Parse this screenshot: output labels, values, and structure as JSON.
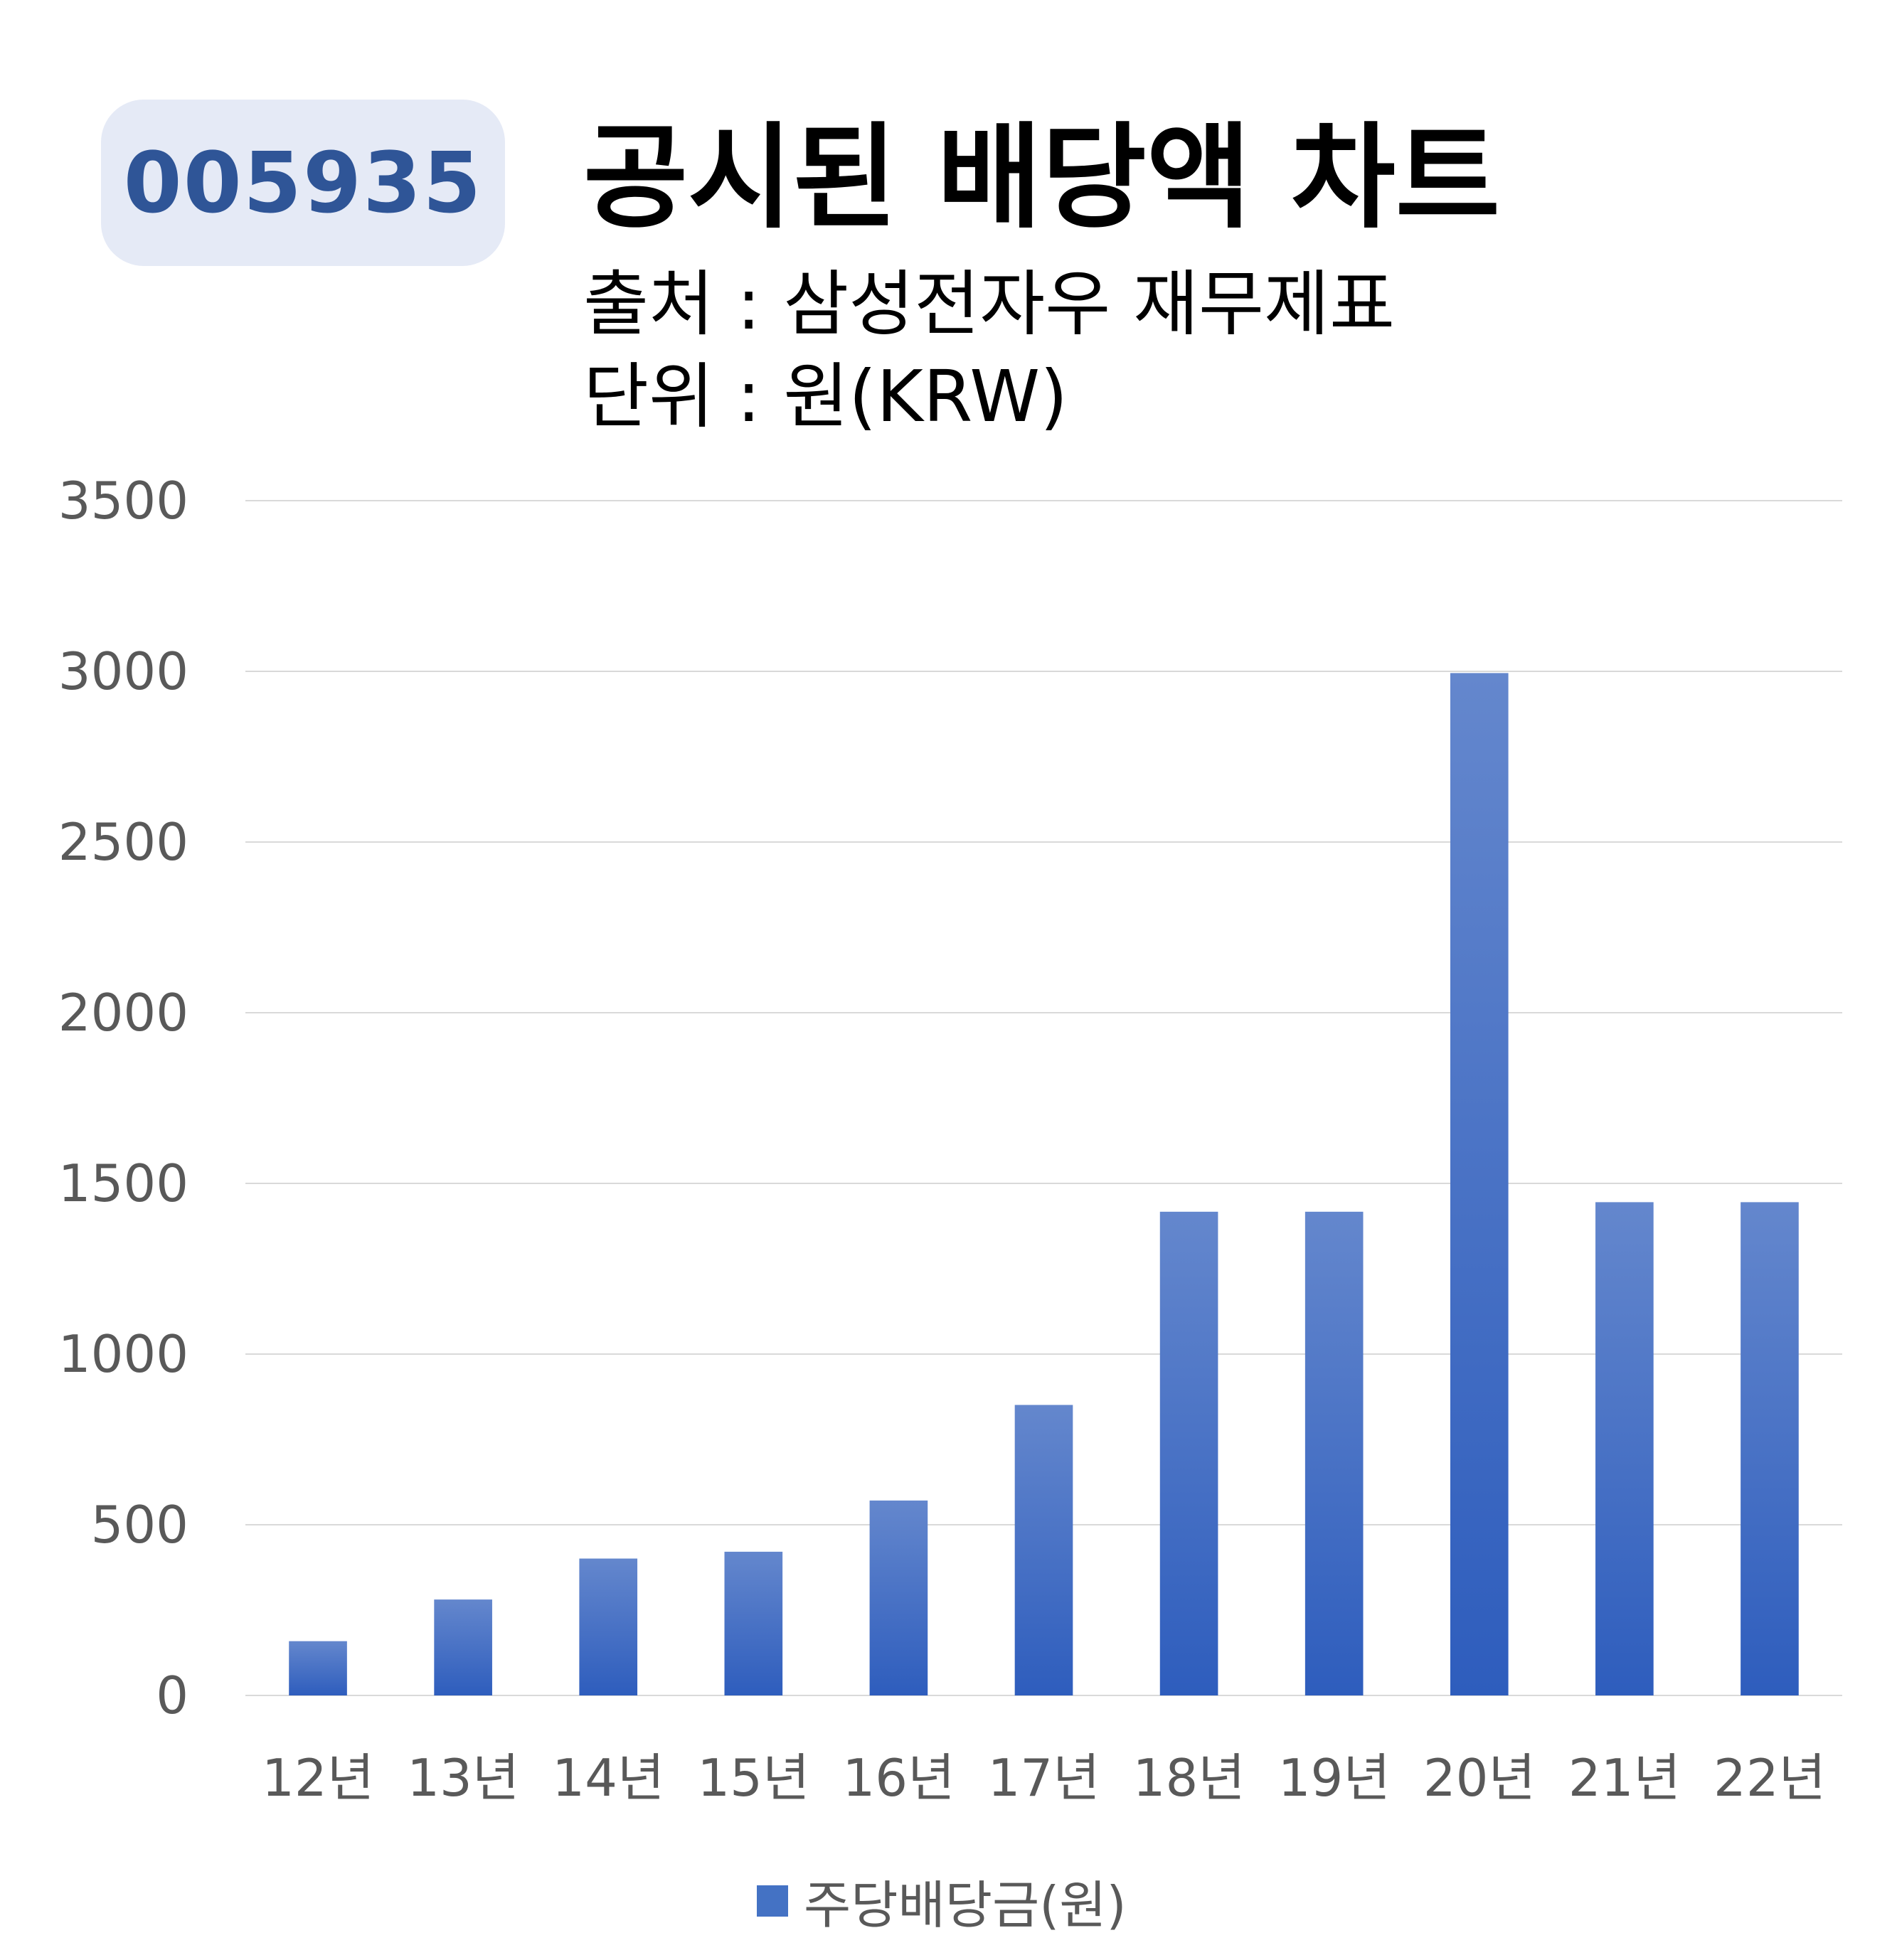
{
  "header": {
    "badge": "005935",
    "title": "공시된 배당액 차트",
    "source_line": "출처 : 삼성전자우 재무제표",
    "unit_line": "단위 : 원(KRW)"
  },
  "chart_data": {
    "type": "bar",
    "title": "공시된 배당액 차트",
    "categories": [
      "12년",
      "13년",
      "14년",
      "15년",
      "16년",
      "17년",
      "18년",
      "19년",
      "20년",
      "21년",
      "22년"
    ],
    "series": [
      {
        "name": "주당배당금(원)",
        "values": [
          159,
          281,
          401,
          421,
          571,
          851,
          1417,
          1417,
          2995,
          1445,
          1445
        ]
      }
    ],
    "ylim": [
      0,
      3500
    ],
    "yticks": [
      0,
      500,
      1000,
      1500,
      2000,
      2500,
      3000,
      3500
    ],
    "grid": true,
    "legend": "bottom",
    "colors": {
      "bar_top": "#6487cd",
      "bar_bottom": "#2e5dbd",
      "grid": "#d9d9d9",
      "tick_text": "#595959"
    }
  }
}
